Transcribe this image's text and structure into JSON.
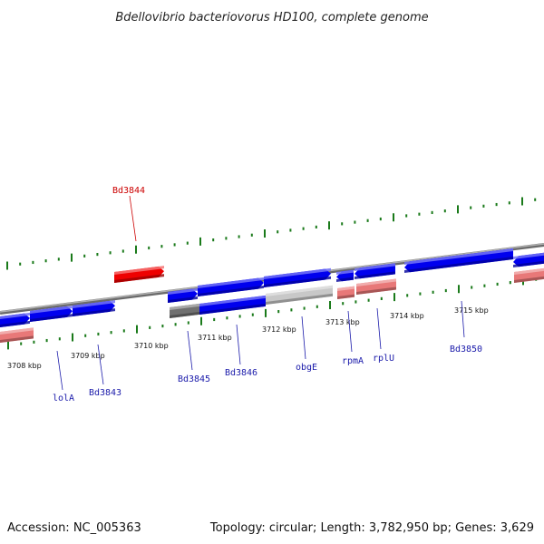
{
  "header": {
    "title": "Bdellovibrio bacteriovorus HD100, complete genome"
  },
  "footer": {
    "accession": "Accession: NC_005363",
    "stats": "Topology: circular; Length: 3,782,950 bp; Genes: 3,629"
  },
  "colors": {
    "backbone": "#8c8c8c",
    "forward_gene": "#0000ee",
    "reverse_gene": "#e87878",
    "selected_gene": "#ee0000",
    "pseudo_light": "#c8c8c8",
    "pseudo_dark": "#707070",
    "tick": "#1a7a1a",
    "label_blue": "#1a1aaa",
    "label_red": "#cc0000"
  },
  "axis": {
    "labels": [
      "3708 kbp",
      "3709 kbp",
      "3710 kbp",
      "3711 kbp",
      "3712 kbp",
      "3713 kbp",
      "3714 kbp",
      "3715 kbp"
    ]
  },
  "gene_labels": [
    {
      "name": "Bd3844",
      "color": "label_red"
    },
    {
      "name": "lolA",
      "color": "label_blue"
    },
    {
      "name": "Bd3843",
      "color": "label_blue"
    },
    {
      "name": "Bd3845",
      "color": "label_blue"
    },
    {
      "name": "Bd3846",
      "color": "label_blue"
    },
    {
      "name": "obgE",
      "color": "label_blue"
    },
    {
      "name": "rpmA",
      "color": "label_blue"
    },
    {
      "name": "rplU",
      "color": "label_blue"
    },
    {
      "name": "Bd3850",
      "color": "label_blue"
    }
  ]
}
